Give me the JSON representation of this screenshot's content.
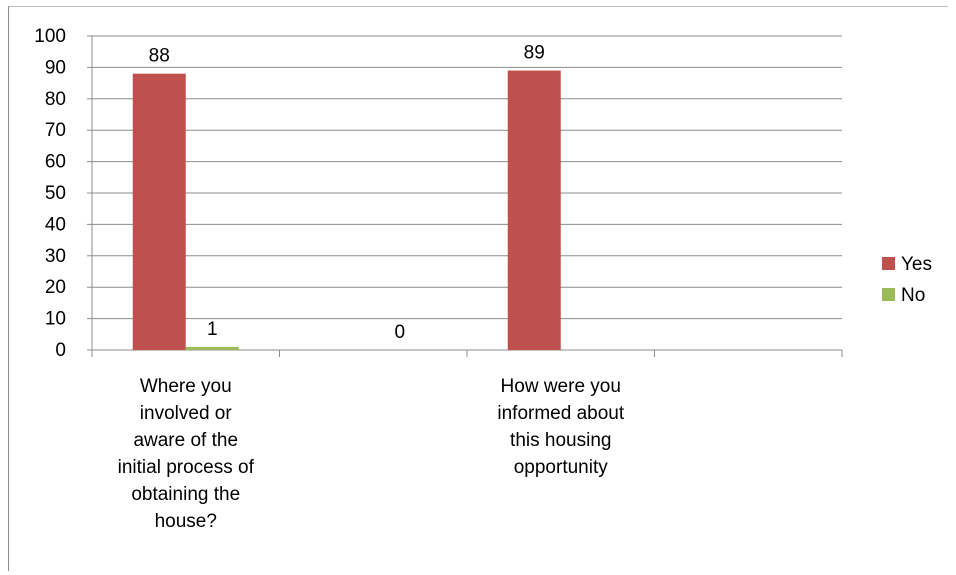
{
  "chart_data": {
    "type": "bar",
    "categories": [
      "Where you involved or aware of the initial process of obtaining the house?",
      "",
      "How were you informed about this housing opportunity",
      ""
    ],
    "category_label_lines": [
      [
        "Where you",
        "involved or",
        "aware of the",
        "initial process of",
        "obtaining the",
        "house?"
      ],
      [],
      [
        "How were you",
        "informed about",
        "this housing",
        "opportunity"
      ],
      []
    ],
    "series": [
      {
        "name": "Yes",
        "values": [
          88,
          null,
          89,
          null
        ],
        "color": "#c0504d"
      },
      {
        "name": "No",
        "values": [
          1,
          0,
          null,
          null
        ],
        "color": "#9bbb59"
      }
    ],
    "data_labels": [
      {
        "series": 0,
        "category": 0,
        "text": "88"
      },
      {
        "series": 1,
        "category": 0,
        "text": "1"
      },
      {
        "series": 1,
        "category": 1,
        "text": "0"
      },
      {
        "series": 0,
        "category": 2,
        "text": "89"
      }
    ],
    "ylim": [
      0,
      100
    ],
    "yticks": [
      0,
      10,
      20,
      30,
      40,
      50,
      60,
      70,
      80,
      90,
      100
    ],
    "grid": true,
    "legend": {
      "position": "right",
      "entries": [
        "Yes",
        "No"
      ]
    },
    "title": "",
    "xlabel": "",
    "ylabel": ""
  }
}
